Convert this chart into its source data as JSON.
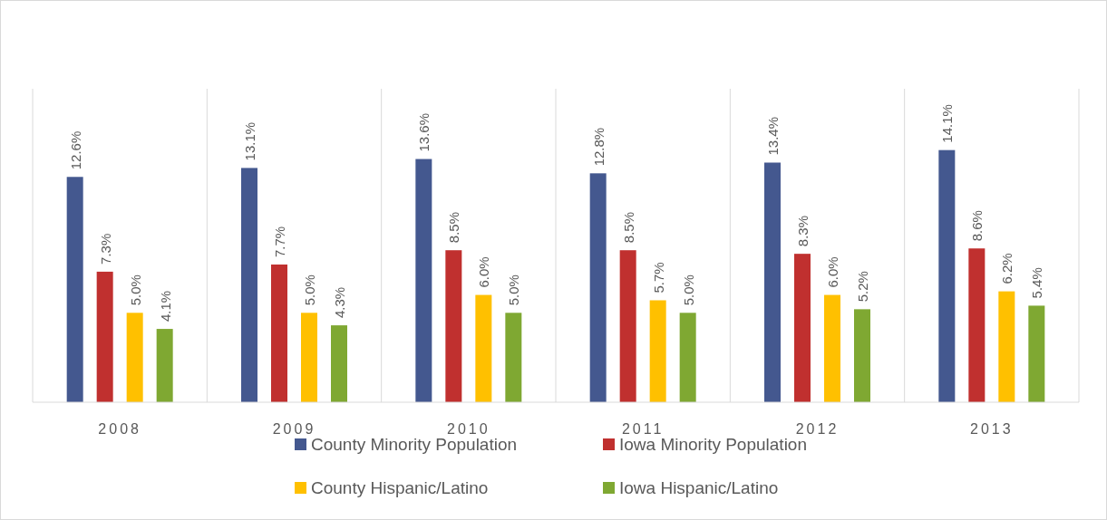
{
  "chart_data": {
    "type": "bar",
    "categories": [
      "2008",
      "2009",
      "2010",
      "2011",
      "2012",
      "2013"
    ],
    "series": [
      {
        "name": "County Minority Population",
        "color": "#44588f",
        "values": [
          12.6,
          13.1,
          13.6,
          12.8,
          13.4,
          14.1
        ],
        "value_labels": [
          "12.6%",
          "13.1%",
          "13.6%",
          "12.8%",
          "13.4%",
          "14.1%"
        ]
      },
      {
        "name": "Iowa Minority Population",
        "color": "#c0302f",
        "values": [
          7.3,
          7.7,
          8.5,
          8.5,
          8.3,
          8.6
        ],
        "value_labels": [
          "7.3%",
          "7.7%",
          "8.5%",
          "8.5%",
          "8.3%",
          "8.6%"
        ]
      },
      {
        "name": "County Hispanic/Latino",
        "color": "#ffc000",
        "values": [
          5.0,
          5.0,
          6.0,
          5.7,
          6.0,
          6.2
        ],
        "value_labels": [
          "5.0%",
          "5.0%",
          "6.0%",
          "5.7%",
          "6.0%",
          "6.2%"
        ]
      },
      {
        "name": "Iowa Hispanic/Latino",
        "color": "#7fa832",
        "values": [
          4.1,
          4.3,
          5.0,
          5.0,
          5.2,
          5.4
        ],
        "value_labels": [
          "4.1%",
          "4.3%",
          "5.0%",
          "5.0%",
          "5.2%",
          "5.4%"
        ]
      }
    ],
    "grid": "x",
    "legend": "bottom",
    "tick_labels": "x"
  }
}
